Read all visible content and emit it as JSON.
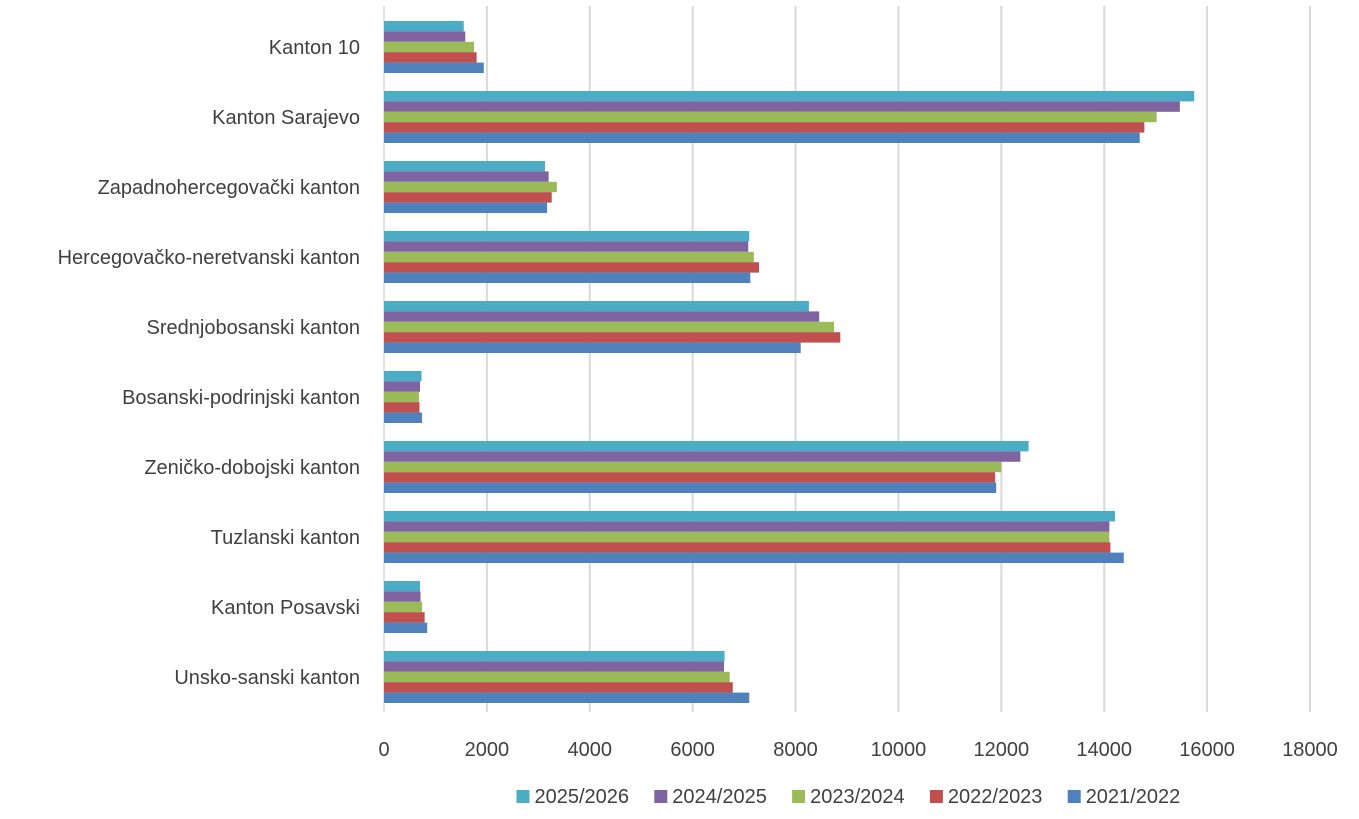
{
  "chart_data": {
    "type": "bar",
    "orientation": "horizontal",
    "title": "",
    "xlabel": "",
    "ylabel": "",
    "xlim": [
      0,
      18000
    ],
    "xticks": [
      0,
      2000,
      4000,
      6000,
      8000,
      10000,
      12000,
      14000,
      16000,
      18000
    ],
    "grid": true,
    "legend_position": "bottom",
    "categories": [
      "Kanton 10",
      "Kanton Sarajevo",
      "Zapadnohercegovački kanton",
      "Hercegovačko-neretvanski kanton",
      "Srednjobosanski kanton",
      "Bosanski-podrinjski kanton",
      "Zeničko-dobojski kanton",
      "Tuzlanski kanton",
      "Kanton Posavski",
      "Unsko-sanski kanton"
    ],
    "series": [
      {
        "name": "2025/2026",
        "color": "#4bacc6",
        "values": [
          1550,
          15750,
          3130,
          7100,
          8260,
          730,
          12530,
          14210,
          700,
          6620
        ]
      },
      {
        "name": "2024/2025",
        "color": "#8064a2",
        "values": [
          1580,
          15470,
          3200,
          7080,
          8460,
          700,
          12370,
          14100,
          710,
          6610
        ]
      },
      {
        "name": "2023/2024",
        "color": "#9bbb59",
        "values": [
          1750,
          15020,
          3360,
          7190,
          8750,
          680,
          12000,
          14100,
          740,
          6720
        ]
      },
      {
        "name": "2022/2023",
        "color": "#c0504d",
        "values": [
          1800,
          14780,
          3260,
          7290,
          8870,
          690,
          11880,
          14120,
          790,
          6780
        ]
      },
      {
        "name": "2021/2022",
        "color": "#4f81bd",
        "values": [
          1940,
          14690,
          3170,
          7120,
          8100,
          740,
          11900,
          14380,
          840,
          7100
        ]
      }
    ]
  }
}
